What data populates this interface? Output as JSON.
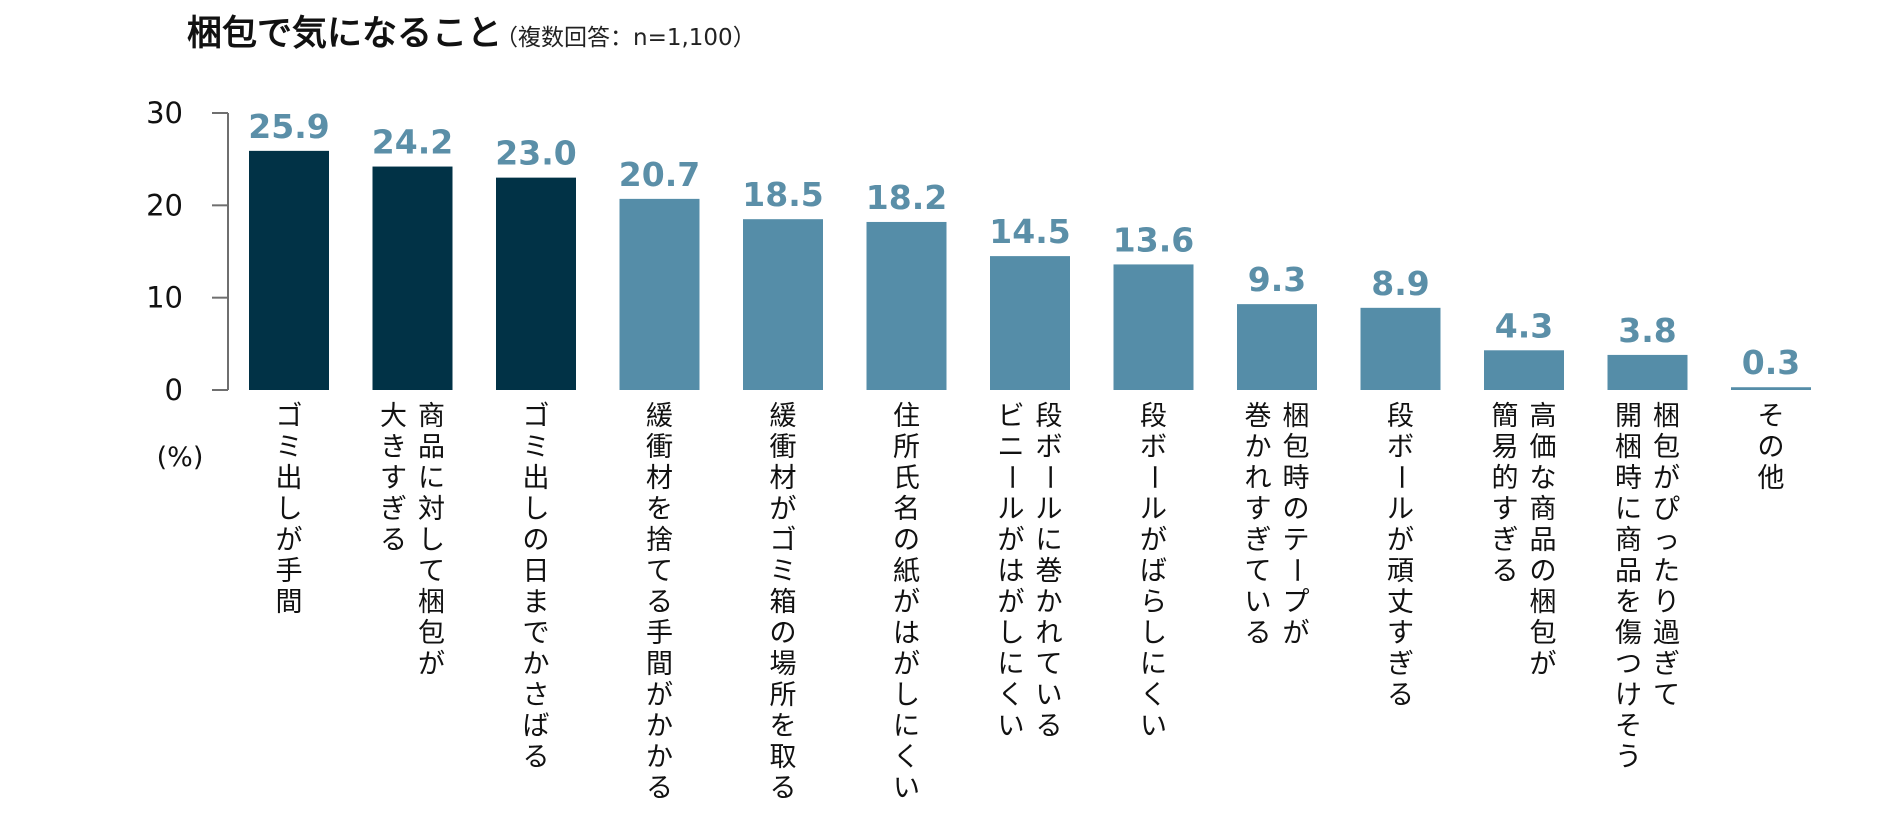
{
  "title": "梱包で気になること",
  "subtitle": "（複数回答：n=1,100）",
  "chart_data": {
    "type": "bar",
    "title": "梱包で気になること",
    "subtitle": "（複数回答：n=1,100）",
    "ylabel": "(%)",
    "ylim": [
      0,
      30
    ],
    "yticks": [
      "0",
      "10",
      "20",
      "30"
    ],
    "grid": false,
    "legend": "none",
    "highlight_color": "#013246",
    "base_color": "#558da8",
    "label_color": "#5b8fa8",
    "categories": [
      [
        "ゴミ出しが手間"
      ],
      [
        "商品に対して梱包が",
        "大きすぎる"
      ],
      [
        "ゴミ出しの日までかさばる"
      ],
      [
        "緩衝材を捨てる手間がかかる"
      ],
      [
        "緩衝材がゴミ箱の場所を取る"
      ],
      [
        "住所氏名の紙がはがしにくい"
      ],
      [
        "段ボールに巻かれている",
        "ビニールがはがしにくい"
      ],
      [
        "段ボールがばらしにくい"
      ],
      [
        "梱包時のテープが",
        "巻かれすぎている"
      ],
      [
        "段ボールが頑丈すぎる"
      ],
      [
        "高価な商品の梱包が",
        "簡易的すぎる"
      ],
      [
        "梱包がぴったり過ぎて",
        "開梱時に商品を傷つけそう"
      ],
      [
        "その他"
      ]
    ],
    "values": [
      25.9,
      24.2,
      23.0,
      20.7,
      18.5,
      18.2,
      14.5,
      13.6,
      9.3,
      8.9,
      4.3,
      3.8,
      0.3
    ],
    "value_labels": [
      "25.9",
      "24.2",
      "23.0",
      "20.7",
      "18.5",
      "18.2",
      "14.5",
      "13.6",
      "9.3",
      "8.9",
      "4.3",
      "3.8",
      "0.3"
    ],
    "highlighted_count": 3
  }
}
